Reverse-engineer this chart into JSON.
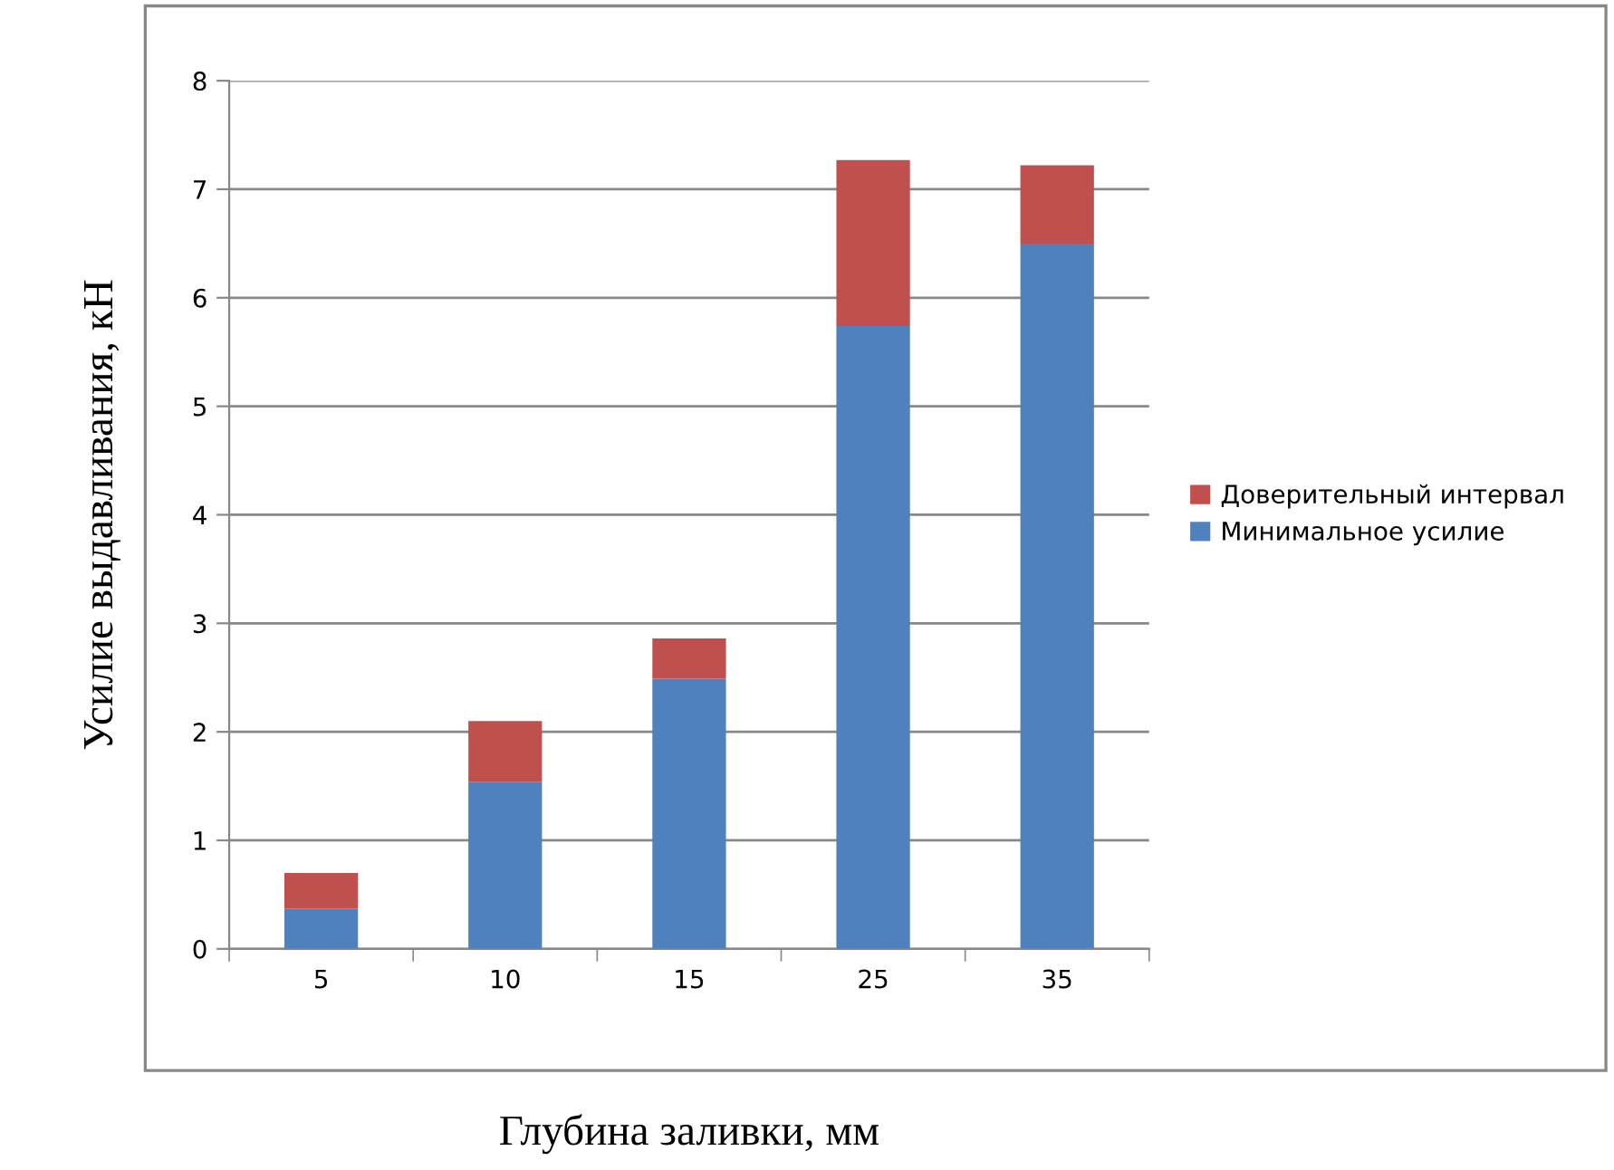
{
  "chart_data": {
    "type": "bar",
    "stacked": true,
    "xlabel": "Глубина заливки, мм",
    "ylabel": "Усилие выдавливания, кН",
    "categories": [
      "5",
      "10",
      "15",
      "25",
      "35"
    ],
    "series": [
      {
        "name": "Минимальное усилие",
        "color": "#4f81bd",
        "values": [
          0.37,
          1.54,
          2.49,
          5.74,
          6.5
        ]
      },
      {
        "name": "Доверительный интервал",
        "color": "#c0504d",
        "values": [
          0.33,
          0.56,
          0.37,
          1.53,
          0.72
        ]
      }
    ],
    "ylim": [
      0,
      8
    ],
    "yticks": [
      0,
      1,
      2,
      3,
      4,
      5,
      6,
      7,
      8
    ],
    "grid": "y",
    "legend": "right"
  }
}
